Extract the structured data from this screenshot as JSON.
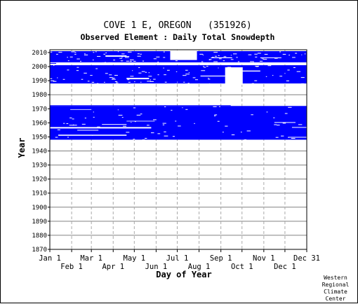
{
  "chart_data": {
    "type": "heatmap",
    "title": "COVE 1 E, OREGON   (351926)",
    "subtitle": "Observed Element : Daily Total Snowdepth",
    "xlabel": "Day of Year",
    "ylabel": "Year",
    "x_range": [
      1,
      366
    ],
    "y_range": [
      1870,
      2012
    ],
    "y_ticks": [
      2010,
      2000,
      1990,
      1980,
      1970,
      1960,
      1950,
      1940,
      1930,
      1920,
      1910,
      1900,
      1890,
      1880,
      1870
    ],
    "x_ticks_upper": [
      {
        "label": "Jan 1",
        "day": 1
      },
      {
        "label": "Mar 1",
        "day": 60
      },
      {
        "label": "May 1",
        "day": 121
      },
      {
        "label": "Jul 1",
        "day": 182
      },
      {
        "label": "Sep 1",
        "day": 244
      },
      {
        "label": "Nov 1",
        "day": 305
      },
      {
        "label": "Dec 31",
        "day": 366
      }
    ],
    "x_ticks_lower": [
      {
        "label": "Feb 1",
        "day": 32
      },
      {
        "label": "Apr 1",
        "day": 91
      },
      {
        "label": "Jun 1",
        "day": 152
      },
      {
        "label": "Aug 1",
        "day": 213
      },
      {
        "label": "Oct 1",
        "day": 274
      },
      {
        "label": "Dec 1",
        "day": 335
      }
    ],
    "grid": true,
    "bands": [
      {
        "year_start": 1948,
        "year_end": 1972,
        "day_start": 1,
        "day_end": 366
      },
      {
        "year_start": 1988,
        "year_end": 2001,
        "day_start": 1,
        "day_end": 366
      },
      {
        "year_start": 2003,
        "year_end": 2011,
        "day_start": 1,
        "day_end": 366
      }
    ],
    "gaps": [
      {
        "year_start": 1950.8,
        "year_end": 1951.6,
        "day_start": 13,
        "day_end": 110
      },
      {
        "year_start": 1956.0,
        "year_end": 1957.0,
        "day_start": 1,
        "day_end": 145
      },
      {
        "year_start": 1958.6,
        "year_end": 1959.1,
        "day_start": 75,
        "day_end": 110
      },
      {
        "year_start": 1954.5,
        "year_end": 1955.0,
        "day_start": 40,
        "day_end": 70
      },
      {
        "year_start": 1969.3,
        "year_end": 1969.7,
        "day_start": 30,
        "day_end": 60
      },
      {
        "year_start": 1961.0,
        "year_end": 1961.4,
        "day_start": 110,
        "day_end": 150
      },
      {
        "year_start": 1949.5,
        "year_end": 1950.0,
        "day_start": 340,
        "day_end": 366
      },
      {
        "year_start": 1956.5,
        "year_end": 1957.0,
        "day_start": 345,
        "day_end": 366
      },
      {
        "year_start": 1960.0,
        "year_end": 1960.5,
        "day_start": 320,
        "day_end": 350
      },
      {
        "year_start": 1991.0,
        "year_end": 1992.0,
        "day_start": 110,
        "day_end": 142
      },
      {
        "year_start": 1993.0,
        "year_end": 1993.6,
        "day_start": 215,
        "day_end": 250
      },
      {
        "year_start": 1996.5,
        "year_end": 1997.2,
        "day_start": 260,
        "day_end": 300
      },
      {
        "year_start": 1987.0,
        "year_end": 1999.5,
        "day_start": 250,
        "day_end": 275
      },
      {
        "year_start": 2004.7,
        "year_end": 2011.5,
        "day_start": 172,
        "day_end": 210
      },
      {
        "year_start": 2007.0,
        "year_end": 2008.0,
        "day_start": 80,
        "day_end": 110
      },
      {
        "year_start": 2006.0,
        "year_end": 2006.5,
        "day_start": 300,
        "day_end": 330
      },
      {
        "year_start": 2006.0,
        "year_end": 2006.6,
        "day_start": 230,
        "day_end": 260
      }
    ],
    "extra": [
      {
        "year_start": 1972.0,
        "year_end": 1972.5,
        "day_start": 1,
        "day_end": 258
      },
      {
        "year_start": 2010.5,
        "year_end": 2011.0,
        "day_start": 340,
        "day_end": 366
      },
      {
        "year_start": 2002.0,
        "year_end": 2002.5,
        "day_start": 1,
        "day_end": 10
      }
    ]
  },
  "colors": {
    "data": "#0000ff",
    "grid_solid": "#000000",
    "grid_dash": "#a9a9a9",
    "background": "#ffffff"
  },
  "credit": [
    "Western",
    "Regional",
    "Climate",
    "Center"
  ]
}
